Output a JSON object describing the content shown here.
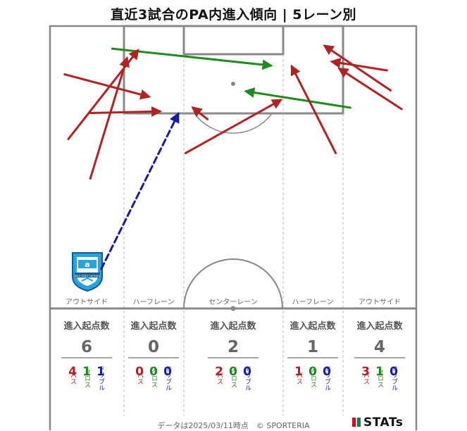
{
  "title": "直近3試合のPA内進入傾向 | 5レーン別",
  "footer": "データは2025/03/11時点　© SPORTERIA",
  "brand": "STATs",
  "team_emblem": "azul claro numazu",
  "colors": {
    "pass": "#b22222",
    "cross": "#1e8c1e",
    "dribble": "#1a1aa8",
    "pitch_line": "#888888",
    "lane_line": "#bbbbbb"
  },
  "chart_data": {
    "type": "arrow-map",
    "x_range": [
      0,
      100
    ],
    "y_range": [
      0,
      100
    ],
    "lanes": [
      {
        "name": "アウトサイド",
        "header": "進入起点数",
        "total": "6",
        "counts": [
          {
            "value": "4",
            "label": "パス",
            "kind": "pass"
          },
          {
            "value": "1",
            "label": "クロス",
            "kind": "cross"
          },
          {
            "value": "1",
            "label": "ドリブル",
            "kind": "dribble"
          }
        ]
      },
      {
        "name": "ハーフレーン",
        "header": "進入起点数",
        "total": "0",
        "counts": [
          {
            "value": "0",
            "label": "パス",
            "kind": "pass"
          },
          {
            "value": "0",
            "label": "クロス",
            "kind": "cross"
          },
          {
            "value": "0",
            "label": "ドリブル",
            "kind": "dribble"
          }
        ]
      },
      {
        "name": "センターレーン",
        "header": "進入起点数",
        "total": "2",
        "counts": [
          {
            "value": "2",
            "label": "パス",
            "kind": "pass"
          },
          {
            "value": "0",
            "label": "クロス",
            "kind": "cross"
          },
          {
            "value": "0",
            "label": "ドリブル",
            "kind": "dribble"
          }
        ]
      },
      {
        "name": "ハーフレーン",
        "header": "進入起点数",
        "total": "1",
        "counts": [
          {
            "value": "1",
            "label": "パス",
            "kind": "pass"
          },
          {
            "value": "0",
            "label": "クロス",
            "kind": "cross"
          },
          {
            "value": "0",
            "label": "ドリブル",
            "kind": "dribble"
          }
        ]
      },
      {
        "name": "アウトサイド",
        "header": "進入起点数",
        "total": "4",
        "counts": [
          {
            "value": "3",
            "label": "パス",
            "kind": "pass"
          },
          {
            "value": "1",
            "label": "クロス",
            "kind": "cross"
          },
          {
            "value": "0",
            "label": "ドリブル",
            "kind": "dribble"
          }
        ]
      }
    ],
    "arrows": [
      {
        "kind": "cross",
        "x0": 17.0,
        "y0": 92.0,
        "x1": 60.3,
        "y1": 86.0
      },
      {
        "kind": "pass",
        "x0": 5.0,
        "y0": 60.0,
        "x1": 24.0,
        "y1": 91.4
      },
      {
        "kind": "pass",
        "x0": 4.0,
        "y0": 82.9,
        "x1": 27.0,
        "y1": 75.0
      },
      {
        "kind": "pass",
        "x0": 11.0,
        "y0": 46.0,
        "x1": 21.0,
        "y1": 88.6
      },
      {
        "kind": "pass",
        "x0": 11.0,
        "y0": 69.2,
        "x1": 30.0,
        "y1": 69.8
      },
      {
        "kind": "dribble",
        "x0": 14.0,
        "y0": 14.0,
        "x1": 35.0,
        "y1": 68.9
      },
      {
        "kind": "pass",
        "x0": 43.0,
        "y0": 67.0,
        "x1": 39.0,
        "y1": 71.1
      },
      {
        "kind": "pass",
        "x0": 37.0,
        "y0": 55.0,
        "x1": 63.0,
        "y1": 73.8
      },
      {
        "kind": "cross",
        "x0": 82.0,
        "y0": 71.1,
        "x1": 53.5,
        "y1": 76.9
      },
      {
        "kind": "pass",
        "x0": 78.0,
        "y0": 55.0,
        "x1": 66.0,
        "y1": 85.7
      },
      {
        "kind": "pass",
        "x0": 93.0,
        "y0": 77.2,
        "x1": 75.0,
        "y1": 93.0
      },
      {
        "kind": "pass",
        "x0": 92.0,
        "y0": 84.3,
        "x1": 77.0,
        "y1": 87.4
      },
      {
        "kind": "pass",
        "x0": 96.0,
        "y0": 70.6,
        "x1": 79.0,
        "y1": 84.9
      }
    ]
  }
}
